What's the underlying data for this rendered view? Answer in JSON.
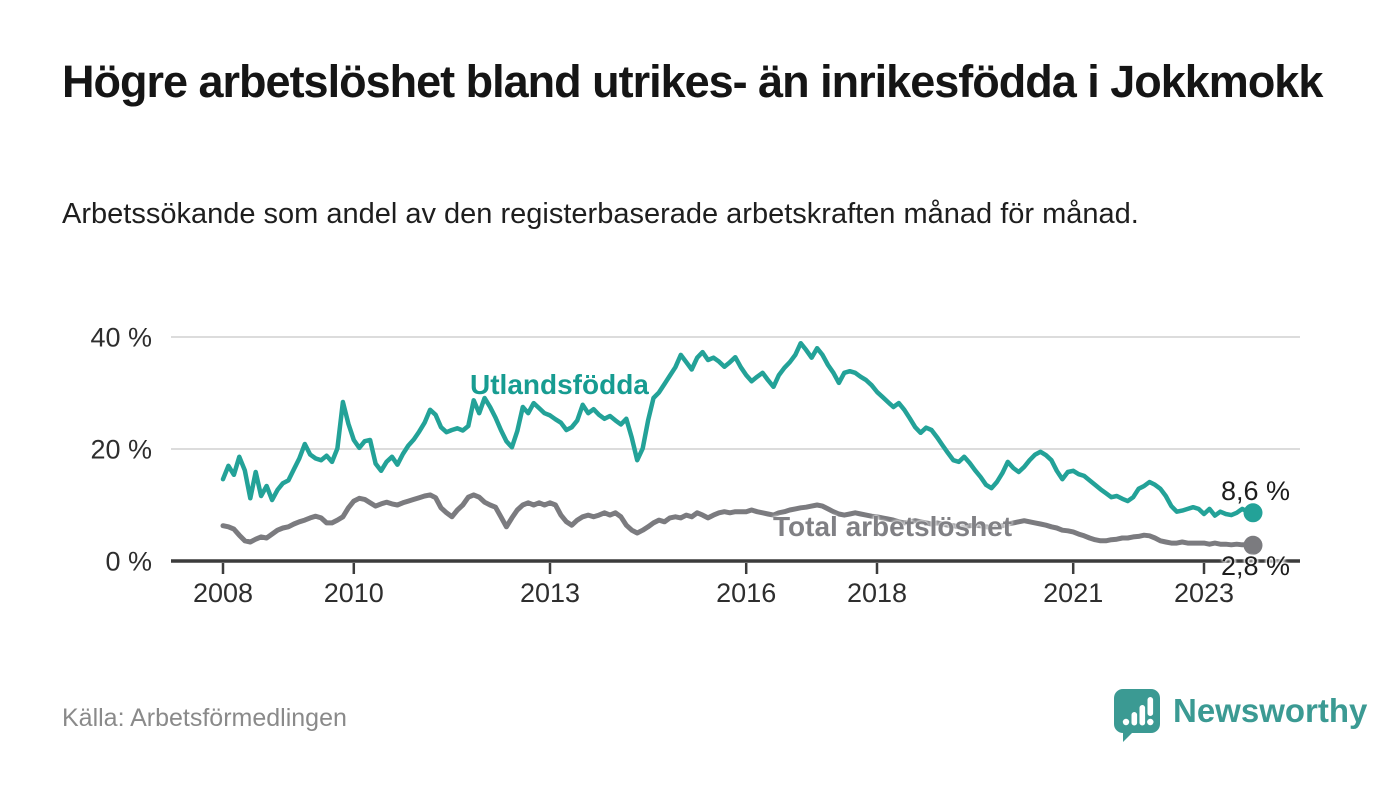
{
  "header": {
    "title": "Högre arbetslöshet bland utrikes- än inrikesfödda i Jokkmokk",
    "subtitle": "Arbetssökande som andel av den registerbaserade arbetskraften månad för månad."
  },
  "chart_data": {
    "type": "line",
    "unit": "%",
    "frequency": "monthly",
    "x_start": "2008-01",
    "x_end": "2023-10",
    "x_tick_years": [
      2008,
      2010,
      2013,
      2016,
      2018,
      2021,
      2023
    ],
    "y_ticks": [
      {
        "value": 0,
        "label": "0 %"
      },
      {
        "value": 20,
        "label": "20 %"
      },
      {
        "value": 40,
        "label": "40 %"
      }
    ],
    "ylim": [
      0,
      42
    ],
    "grid": true,
    "legend_position": "inline-labels",
    "series": [
      {
        "name": "Utlandsfödda",
        "color": "#23a298",
        "end_label": "8,6 %",
        "end_value": 8.6,
        "values": [
          14.6,
          17.0,
          15.4,
          18.6,
          16.2,
          11.2,
          15.9,
          11.6,
          13.4,
          10.9,
          12.7,
          13.9,
          14.4,
          16.4,
          18.3,
          20.9,
          19.0,
          18.3,
          18.0,
          18.8,
          17.7,
          20.1,
          28.4,
          24.5,
          21.6,
          20.2,
          21.4,
          21.6,
          17.4,
          16.1,
          17.7,
          18.6,
          17.2,
          19.1,
          20.6,
          21.7,
          23.1,
          24.7,
          27.0,
          26.1,
          23.9,
          23.0,
          23.4,
          23.7,
          23.3,
          24.1,
          28.7,
          26.4,
          29.1,
          27.5,
          25.6,
          23.4,
          21.4,
          20.3,
          23.2,
          27.5,
          26.4,
          28.2,
          27.3,
          26.4,
          26.0,
          25.3,
          24.7,
          23.4,
          23.9,
          25.1,
          27.9,
          26.4,
          27.1,
          26.1,
          25.4,
          25.9,
          25.1,
          24.4,
          25.4,
          22.0,
          18.0,
          20.1,
          25.1,
          29.1,
          30.1,
          31.6,
          33.1,
          34.6,
          36.8,
          35.5,
          34.2,
          36.3,
          37.3,
          35.9,
          36.3,
          35.6,
          34.7,
          35.5,
          36.4,
          34.6,
          33.2,
          32.1,
          32.9,
          33.6,
          32.3,
          31.1,
          33.2,
          34.5,
          35.5,
          36.8,
          38.9,
          37.7,
          36.3,
          38.0,
          36.8,
          35.0,
          33.6,
          31.8,
          33.6,
          33.9,
          33.6,
          32.9,
          32.3,
          31.4,
          30.2,
          29.3,
          28.4,
          27.5,
          28.2,
          27.0,
          25.5,
          23.9,
          22.9,
          23.8,
          23.4,
          22.1,
          20.7,
          19.3,
          18.0,
          17.7,
          18.6,
          17.5,
          16.2,
          15.0,
          13.6,
          13.0,
          14.1,
          15.7,
          17.7,
          16.6,
          15.9,
          16.8,
          18.0,
          19.0,
          19.5,
          18.9,
          18.0,
          16.1,
          14.6,
          15.9,
          16.1,
          15.5,
          15.2,
          14.4,
          13.6,
          12.8,
          12.1,
          11.4,
          11.6,
          11.1,
          10.7,
          11.4,
          12.9,
          13.4,
          14.1,
          13.6,
          12.9,
          11.6,
          9.8,
          8.8,
          9.0,
          9.3,
          9.6,
          9.3,
          8.4,
          9.3,
          8.1,
          8.8,
          8.4,
          8.2,
          8.6,
          9.3,
          8.8,
          8.6
        ]
      },
      {
        "name": "Total arbetslöshet",
        "color": "#7b7b7f",
        "end_label": "2,8 %",
        "end_value": 2.8,
        "values": [
          6.3,
          6.1,
          5.7,
          4.6,
          3.6,
          3.4,
          3.9,
          4.3,
          4.1,
          4.8,
          5.5,
          5.9,
          6.1,
          6.6,
          7.0,
          7.3,
          7.7,
          8.0,
          7.7,
          6.8,
          6.8,
          7.3,
          7.9,
          9.5,
          10.7,
          11.2,
          11.0,
          10.4,
          9.8,
          10.2,
          10.5,
          10.2,
          10.0,
          10.4,
          10.7,
          11.0,
          11.3,
          11.6,
          11.8,
          11.3,
          9.5,
          8.6,
          7.9,
          9.1,
          10.0,
          11.4,
          11.8,
          11.4,
          10.5,
          10.0,
          9.6,
          7.9,
          6.1,
          7.7,
          9.1,
          10.0,
          10.4,
          10.0,
          10.4,
          10.0,
          10.4,
          10.0,
          8.2,
          7.0,
          6.4,
          7.3,
          7.9,
          8.2,
          7.9,
          8.2,
          8.6,
          8.2,
          8.6,
          7.9,
          6.4,
          5.5,
          5.0,
          5.5,
          6.1,
          6.8,
          7.3,
          7.0,
          7.7,
          7.9,
          7.7,
          8.2,
          7.9,
          8.6,
          8.2,
          7.7,
          8.2,
          8.6,
          8.8,
          8.6,
          8.8,
          8.8,
          8.8,
          9.1,
          8.8,
          8.6,
          8.4,
          8.2,
          8.6,
          8.8,
          9.1,
          9.3,
          9.5,
          9.6,
          9.8,
          10.0,
          9.8,
          9.3,
          8.8,
          8.4,
          8.2,
          8.4,
          8.6,
          8.4,
          8.2,
          8.0,
          7.9,
          7.7,
          7.5,
          7.3,
          7.0,
          6.8,
          7.0,
          7.2,
          7.0,
          6.8,
          6.6,
          6.8,
          6.6,
          6.4,
          6.3,
          6.1,
          6.1,
          6.3,
          6.4,
          6.3,
          6.1,
          6.0,
          6.1,
          6.3,
          6.6,
          6.8,
          7.0,
          7.2,
          7.0,
          6.8,
          6.6,
          6.4,
          6.1,
          5.9,
          5.5,
          5.4,
          5.2,
          4.8,
          4.5,
          4.1,
          3.8,
          3.6,
          3.6,
          3.8,
          3.9,
          4.1,
          4.1,
          4.3,
          4.4,
          4.6,
          4.5,
          4.1,
          3.6,
          3.4,
          3.2,
          3.2,
          3.4,
          3.2,
          3.2,
          3.2,
          3.2,
          3.0,
          3.2,
          3.0,
          3.0,
          2.9,
          3.0,
          2.9,
          2.9,
          2.8
        ]
      }
    ],
    "title": "Högre arbetslöshet bland utrikes- än inrikesfödda i Jokkmokk",
    "xlabel": "",
    "ylabel": ""
  },
  "footer": {
    "source": "Källa: Arbetsförmedlingen",
    "brand": "Newsworthy"
  },
  "colors": {
    "accent_teal": "#23a298",
    "series_gray": "#7b7b7f",
    "gridline": "#dcdcdc",
    "axis": "#3c3c3c",
    "brand_teal": "#3b9a93",
    "text_dark": "#151515",
    "text_muted": "#8a8a8a"
  }
}
